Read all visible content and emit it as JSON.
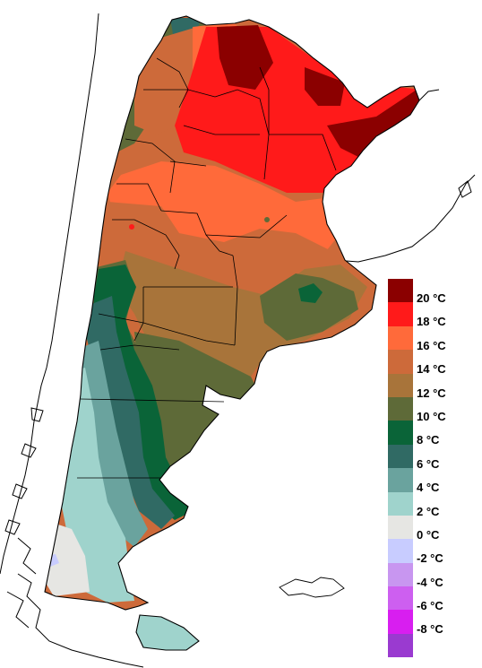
{
  "map": {
    "region": "Argentina",
    "legend": {
      "unit": "°C",
      "levels": [
        {
          "label": "20 °C",
          "color": "#8b0000"
        },
        {
          "label": "18 °C",
          "color": "#ff1a1a"
        },
        {
          "label": "16 °C",
          "color": "#ff6a3a"
        },
        {
          "label": "14 °C",
          "color": "#cd6a3a"
        },
        {
          "label": "12 °C",
          "color": "#a8743a"
        },
        {
          "label": "10 °C",
          "color": "#5e6a38"
        },
        {
          "label": "8 °C",
          "color": "#0a6438"
        },
        {
          "label": "6 °C",
          "color": "#306a64"
        },
        {
          "label": "4 °C",
          "color": "#6aa39e"
        },
        {
          "label": "2 °C",
          "color": "#9fd3cc"
        },
        {
          "label": "0 °C",
          "color": "#e6e6e3"
        },
        {
          "label": "-2 °C",
          "color": "#c8ccff"
        },
        {
          "label": "-4 °C",
          "color": "#c896f0"
        },
        {
          "label": "-6 °C",
          "color": "#cd5ff0"
        },
        {
          "label": "-8 °C",
          "color": "#d81ef0"
        },
        {
          "label": "",
          "color": "#9a3ad0"
        }
      ]
    }
  }
}
